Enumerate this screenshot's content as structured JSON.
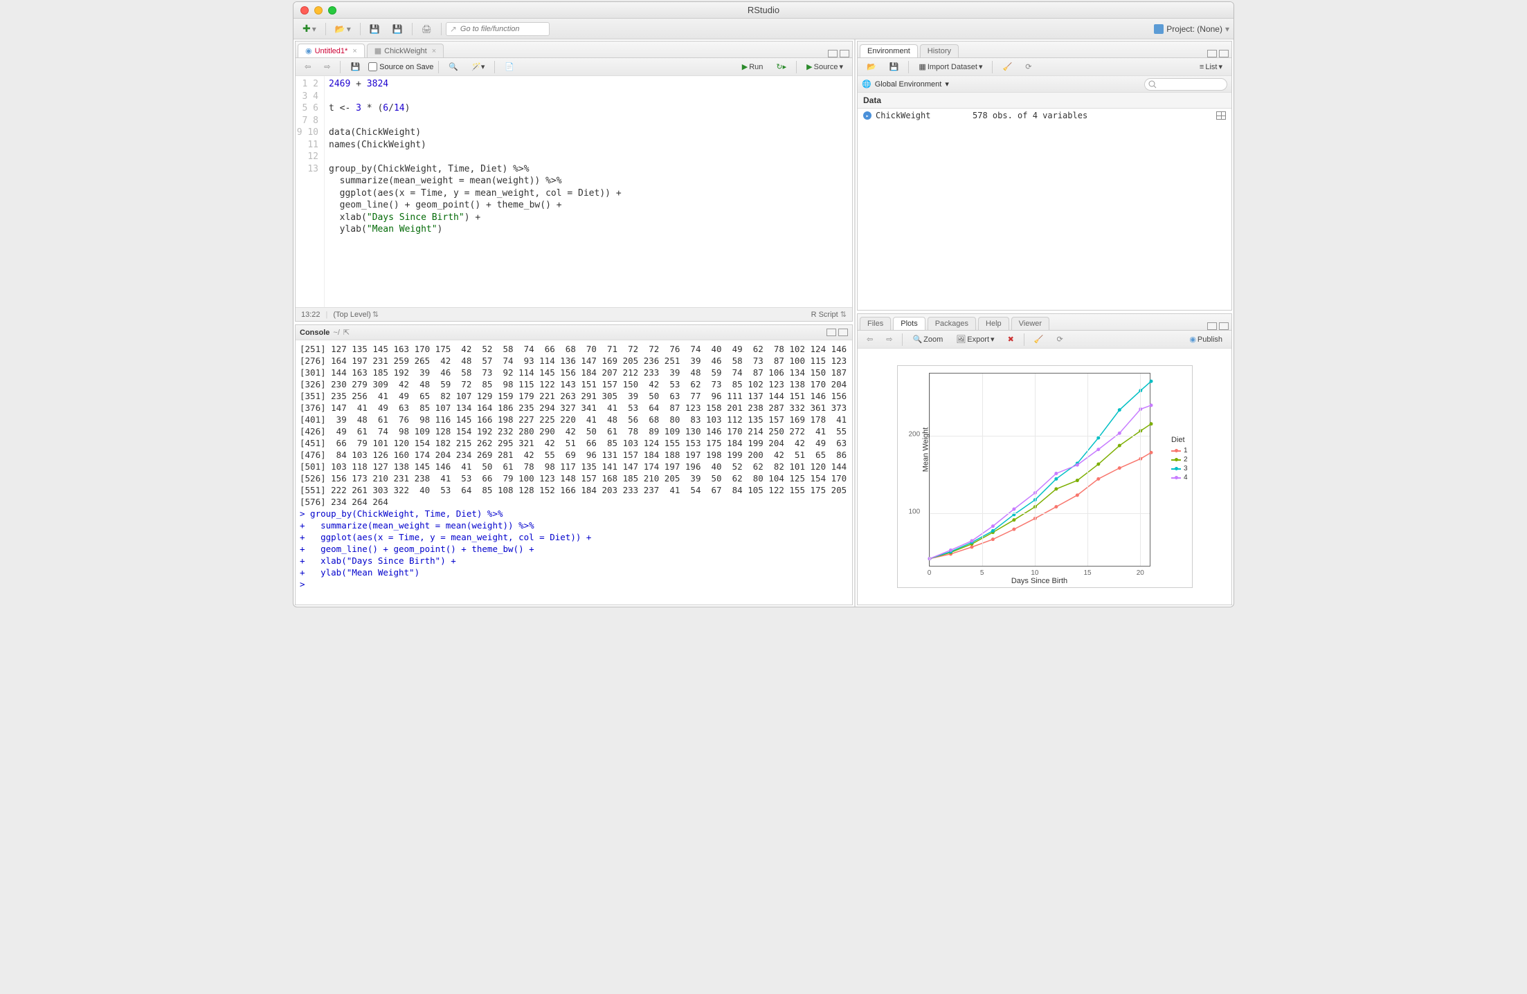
{
  "app_title": "RStudio",
  "project_label": "Project: (None)",
  "goto_placeholder": "Go to file/function",
  "source_pane": {
    "tabs": [
      {
        "label": "Untitled1*",
        "modified": true
      },
      {
        "label": "ChickWeight",
        "modified": false
      }
    ],
    "source_on_save": "Source on Save",
    "run_label": "Run",
    "source_label": "Source",
    "cursor": "13:22",
    "scope": "(Top Level)",
    "lang": "R Script",
    "lines": [
      "2469 + 3824",
      "",
      "t <- 3 * (6/14)",
      "",
      "data(ChickWeight)",
      "names(ChickWeight)",
      "",
      "group_by(ChickWeight, Time, Diet) %>%",
      "  summarize(mean_weight = mean(weight)) %>%",
      "  ggplot(aes(x = Time, y = mean_weight, col = Diet)) +",
      "  geom_line() + geom_point() + theme_bw() +",
      "  xlab(\"Days Since Birth\") +",
      "  ylab(\"Mean Weight\")"
    ]
  },
  "console": {
    "title": "Console",
    "wd": "~/",
    "output_rows": [
      "[251] 127 135 145 163 170 175  42  52  58  74  66  68  70  71  72  72  76  74  40  49  62  78 102 124 146",
      "[276] 164 197 231 259 265  42  48  57  74  93 114 136 147 169 205 236 251  39  46  58  73  87 100 115 123",
      "[301] 144 163 185 192  39  46  58  73  92 114 145 156 184 207 212 233  39  48  59  74  87 106 134 150 187",
      "[326] 230 279 309  42  48  59  72  85  98 115 122 143 151 157 150  42  53  62  73  85 102 123 138 170 204",
      "[351] 235 256  41  49  65  82 107 129 159 179 221 263 291 305  39  50  63  77  96 111 137 144 151 146 156",
      "[376] 147  41  49  63  85 107 134 164 186 235 294 327 341  41  53  64  87 123 158 201 238 287 332 361 373",
      "[401]  39  48  61  76  98 116 145 166 198 227 225 220  41  48  56  68  80  83 103 112 135 157 169 178  41",
      "[426]  49  61  74  98 109 128 154 192 232 280 290  42  50  61  78  89 109 130 146 170 214 250 272  41  55",
      "[451]  66  79 101 120 154 182 215 262 295 321  42  51  66  85 103 124 155 153 175 184 199 204  42  49  63",
      "[476]  84 103 126 160 174 204 234 269 281  42  55  69  96 131 157 184 188 197 198 199 200  42  51  65  86",
      "[501] 103 118 127 138 145 146  41  50  61  78  98 117 135 141 147 174 197 196  40  52  62  82 101 120 144",
      "[526] 156 173 210 231 238  41  53  66  79 100 123 148 157 168 185 210 205  39  50  62  80 104 125 154 170",
      "[551] 222 261 303 322  40  53  64  85 108 128 152 166 184 203 233 237  41  54  67  84 105 122 155 175 205",
      "[576] 234 264 264"
    ],
    "cmd_lines": [
      "> group_by(ChickWeight, Time, Diet) %>%",
      "+   summarize(mean_weight = mean(weight)) %>%",
      "+   ggplot(aes(x = Time, y = mean_weight, col = Diet)) +",
      "+   geom_line() + geom_point() + theme_bw() +",
      "+   xlab(\"Days Since Birth\") +",
      "+   ylab(\"Mean Weight\")",
      "> "
    ]
  },
  "env_pane": {
    "tabs": [
      "Environment",
      "History"
    ],
    "import": "Import Dataset",
    "list": "List",
    "scope": "Global Environment",
    "section": "Data",
    "items": [
      {
        "name": "ChickWeight",
        "desc": "578 obs. of 4 variables"
      }
    ]
  },
  "plot_pane": {
    "tabs": [
      "Files",
      "Plots",
      "Packages",
      "Help",
      "Viewer"
    ],
    "zoom": "Zoom",
    "export": "Export",
    "publish": "Publish",
    "chart": {
      "type": "line",
      "xlabel": "Days Since Birth",
      "ylabel": "Mean Weight",
      "xlim": [
        0,
        21
      ],
      "ylim": [
        30,
        280
      ],
      "xticks": [
        0,
        5,
        10,
        15,
        20
      ],
      "yticks": [
        100,
        200
      ],
      "background": "#ffffff",
      "grid_color": "#e8e8e8",
      "legend_title": "Diet",
      "series": [
        {
          "name": "1",
          "color": "#F8766D",
          "x": [
            0,
            2,
            4,
            6,
            8,
            10,
            12,
            14,
            16,
            18,
            20,
            21
          ],
          "y": [
            41,
            47,
            56,
            66,
            79,
            93,
            108,
            123,
            144,
            158,
            170,
            178
          ]
        },
        {
          "name": "2",
          "color": "#7CAE00",
          "x": [
            0,
            2,
            4,
            6,
            8,
            10,
            12,
            14,
            16,
            18,
            20,
            21
          ],
          "y": [
            41,
            49,
            60,
            75,
            91,
            108,
            131,
            142,
            163,
            187,
            206,
            215
          ]
        },
        {
          "name": "3",
          "color": "#00BFC4",
          "x": [
            0,
            2,
            4,
            6,
            8,
            10,
            12,
            14,
            16,
            18,
            20,
            21
          ],
          "y": [
            41,
            50,
            62,
            77,
            98,
            117,
            144,
            164,
            197,
            233,
            258,
            270
          ]
        },
        {
          "name": "4",
          "color": "#C77CFF",
          "x": [
            0,
            2,
            4,
            6,
            8,
            10,
            12,
            14,
            16,
            18,
            20,
            21
          ],
          "y": [
            41,
            52,
            64,
            83,
            105,
            126,
            151,
            162,
            182,
            203,
            234,
            239
          ]
        }
      ]
    }
  }
}
